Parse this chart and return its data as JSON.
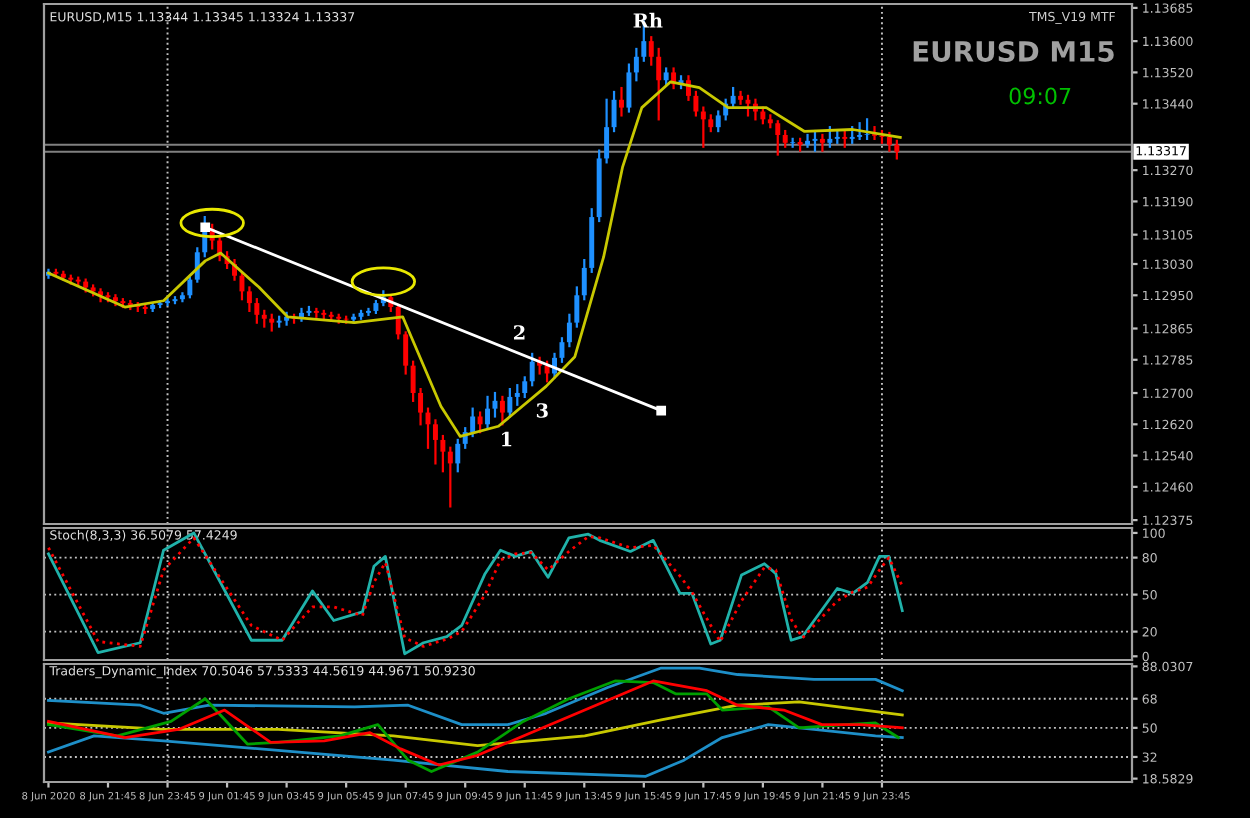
{
  "chart_data": [
    {
      "type": "candlestick",
      "title": "EURUSD,M15 1.13344 1.13345 1.13324 1.13337",
      "tick_labels": "y",
      "x": [
        "2020-06-08T19:45",
        "2020-06-08T20:00",
        "2020-06-08T20:15",
        "2020-06-08T20:30",
        "2020-06-08T20:45",
        "2020-06-08T21:00",
        "2020-06-08T21:15",
        "2020-06-08T21:30",
        "2020-06-08T21:45",
        "2020-06-08T22:00",
        "2020-06-08T22:15",
        "2020-06-08T22:30",
        "2020-06-08T22:45",
        "2020-06-08T23:00",
        "2020-06-08T23:15",
        "2020-06-08T23:30",
        "2020-06-08T23:45",
        "2020-06-09T00:00",
        "2020-06-09T00:15",
        "2020-06-09T00:30",
        "2020-06-09T00:45",
        "2020-06-09T01:00",
        "2020-06-09T01:15",
        "2020-06-09T01:30",
        "2020-06-09T01:45",
        "2020-06-09T02:00",
        "2020-06-09T02:15",
        "2020-06-09T02:30",
        "2020-06-09T02:45",
        "2020-06-09T03:00",
        "2020-06-09T03:15",
        "2020-06-09T03:30",
        "2020-06-09T03:45",
        "2020-06-09T04:00",
        "2020-06-09T04:15",
        "2020-06-09T04:30",
        "2020-06-09T04:45",
        "2020-06-09T05:00",
        "2020-06-09T05:15",
        "2020-06-09T05:30",
        "2020-06-09T05:45",
        "2020-06-09T06:00",
        "2020-06-09T06:15",
        "2020-06-09T06:30",
        "2020-06-09T06:45",
        "2020-06-09T07:00",
        "2020-06-09T07:15",
        "2020-06-09T07:30",
        "2020-06-09T07:45",
        "2020-06-09T08:00",
        "2020-06-09T08:15",
        "2020-06-09T08:30",
        "2020-06-09T08:45",
        "2020-06-09T09:00",
        "2020-06-09T09:15",
        "2020-06-09T09:30",
        "2020-06-09T09:45",
        "2020-06-09T10:00",
        "2020-06-09T10:15",
        "2020-06-09T10:30",
        "2020-06-09T10:45",
        "2020-06-09T11:00",
        "2020-06-09T11:15",
        "2020-06-09T11:30",
        "2020-06-09T11:45",
        "2020-06-09T12:00",
        "2020-06-09T12:15",
        "2020-06-09T12:30",
        "2020-06-09T12:45",
        "2020-06-09T13:00",
        "2020-06-09T13:15",
        "2020-06-09T13:30",
        "2020-06-09T13:45",
        "2020-06-09T14:00",
        "2020-06-09T14:15",
        "2020-06-09T14:30",
        "2020-06-09T14:45",
        "2020-06-09T15:00",
        "2020-06-09T15:15",
        "2020-06-09T15:30",
        "2020-06-09T15:45",
        "2020-06-09T16:00",
        "2020-06-09T16:15",
        "2020-06-09T16:30",
        "2020-06-09T16:45",
        "2020-06-09T17:00",
        "2020-06-09T17:15",
        "2020-06-09T17:30",
        "2020-06-09T17:45",
        "2020-06-09T18:00",
        "2020-06-09T18:15",
        "2020-06-09T18:30",
        "2020-06-09T18:45",
        "2020-06-09T19:00",
        "2020-06-09T19:15",
        "2020-06-09T19:30",
        "2020-06-09T19:45",
        "2020-06-09T20:00",
        "2020-06-09T20:15",
        "2020-06-09T20:30",
        "2020-06-09T20:45",
        "2020-06-09T21:00",
        "2020-06-09T21:15",
        "2020-06-09T21:30",
        "2020-06-09T21:45",
        "2020-06-09T22:00",
        "2020-06-09T22:15",
        "2020-06-09T22:30",
        "2020-06-09T22:45",
        "2020-06-09T23:00",
        "2020-06-09T23:15",
        "2020-06-09T23:30",
        "2020-06-09T23:45",
        "2020-06-10T00:00",
        "2020-06-10T00:15"
      ],
      "ohlc": [
        [
          1.13,
          1.13015,
          1.12995,
          1.1301
        ],
        [
          1.1301,
          1.13015,
          1.13,
          1.13005
        ],
        [
          1.13005,
          1.1301,
          1.1299,
          1.12995
        ],
        [
          1.12995,
          1.13,
          1.1298,
          1.1299
        ],
        [
          1.1299,
          1.12995,
          1.12975,
          1.12985
        ],
        [
          1.12985,
          1.1299,
          1.1296,
          1.1297
        ],
        [
          1.1297,
          1.12975,
          1.1295,
          1.1296
        ],
        [
          1.1296,
          1.12965,
          1.12935,
          1.1295
        ],
        [
          1.1295,
          1.12955,
          1.12935,
          1.12945
        ],
        [
          1.12945,
          1.1295,
          1.12925,
          1.12935
        ],
        [
          1.12935,
          1.1294,
          1.1292,
          1.1293
        ],
        [
          1.1293,
          1.12935,
          1.12915,
          1.12925
        ],
        [
          1.12925,
          1.1293,
          1.1291,
          1.1292
        ],
        [
          1.1292,
          1.12925,
          1.12905,
          1.12915
        ],
        [
          1.12915,
          1.1293,
          1.1291,
          1.12925
        ],
        [
          1.12925,
          1.12935,
          1.1292,
          1.1293
        ],
        [
          1.1293,
          1.1294,
          1.12925,
          1.12935
        ],
        [
          1.12935,
          1.12945,
          1.1293,
          1.1294
        ],
        [
          1.1294,
          1.12955,
          1.12935,
          1.1295
        ],
        [
          1.1295,
          1.12995,
          1.12945,
          1.1299
        ],
        [
          1.1299,
          1.1307,
          1.12985,
          1.1306
        ],
        [
          1.1306,
          1.1315,
          1.1305,
          1.1312
        ],
        [
          1.1312,
          1.1313,
          1.1307,
          1.1309
        ],
        [
          1.1309,
          1.13095,
          1.1304,
          1.1305
        ],
        [
          1.1305,
          1.1306,
          1.1302,
          1.1303
        ],
        [
          1.1303,
          1.1304,
          1.1299,
          1.13
        ],
        [
          1.13,
          1.13005,
          1.1294,
          1.1296
        ],
        [
          1.1296,
          1.1297,
          1.1291,
          1.1293
        ],
        [
          1.1293,
          1.1294,
          1.1288,
          1.129
        ],
        [
          1.129,
          1.1291,
          1.1287,
          1.1289
        ],
        [
          1.1289,
          1.129,
          1.1286,
          1.1288
        ],
        [
          1.1288,
          1.12895,
          1.1287,
          1.12885
        ],
        [
          1.12885,
          1.12905,
          1.12875,
          1.12895
        ],
        [
          1.12895,
          1.129,
          1.1288,
          1.1289
        ],
        [
          1.1289,
          1.12915,
          1.12885,
          1.12905
        ],
        [
          1.12905,
          1.1292,
          1.129,
          1.1291
        ],
        [
          1.1291,
          1.12915,
          1.12895,
          1.12905
        ],
        [
          1.12905,
          1.1291,
          1.1289,
          1.129
        ],
        [
          1.129,
          1.12905,
          1.12885,
          1.12895
        ],
        [
          1.12895,
          1.129,
          1.1288,
          1.1289
        ],
        [
          1.1289,
          1.12895,
          1.1288,
          1.12888
        ],
        [
          1.12888,
          1.129,
          1.1288,
          1.12895
        ],
        [
          1.12895,
          1.1291,
          1.1289,
          1.12905
        ],
        [
          1.12905,
          1.12915,
          1.129,
          1.1291
        ],
        [
          1.1291,
          1.12935,
          1.12905,
          1.1293
        ],
        [
          1.1293,
          1.1296,
          1.12925,
          1.12945
        ],
        [
          1.12945,
          1.1295,
          1.1291,
          1.1292
        ],
        [
          1.1292,
          1.12925,
          1.1284,
          1.1285
        ],
        [
          1.1285,
          1.12855,
          1.1275,
          1.1277
        ],
        [
          1.1277,
          1.1278,
          1.1268,
          1.127
        ],
        [
          1.127,
          1.1271,
          1.1262,
          1.1265
        ],
        [
          1.1265,
          1.1266,
          1.1256,
          1.1262
        ],
        [
          1.1262,
          1.1263,
          1.1252,
          1.1258
        ],
        [
          1.1258,
          1.1259,
          1.125,
          1.1255
        ],
        [
          1.1255,
          1.1256,
          1.1241,
          1.1252
        ],
        [
          1.1252,
          1.1258,
          1.125,
          1.1257
        ],
        [
          1.1257,
          1.1261,
          1.1256,
          1.126
        ],
        [
          1.126,
          1.1266,
          1.1259,
          1.1264
        ],
        [
          1.1264,
          1.1265,
          1.126,
          1.1262
        ],
        [
          1.1262,
          1.1269,
          1.1261,
          1.1266
        ],
        [
          1.1266,
          1.127,
          1.1264,
          1.1268
        ],
        [
          1.1268,
          1.1269,
          1.1262,
          1.1265
        ],
        [
          1.1265,
          1.1271,
          1.1264,
          1.1269
        ],
        [
          1.1269,
          1.1272,
          1.1267,
          1.127
        ],
        [
          1.127,
          1.1274,
          1.1269,
          1.1273
        ],
        [
          1.1273,
          1.128,
          1.1272,
          1.1278
        ],
        [
          1.1278,
          1.1279,
          1.1275,
          1.1277
        ],
        [
          1.1277,
          1.1278,
          1.1273,
          1.1275
        ],
        [
          1.1275,
          1.128,
          1.1274,
          1.1279
        ],
        [
          1.1279,
          1.1284,
          1.1278,
          1.1283
        ],
        [
          1.1283,
          1.129,
          1.1282,
          1.1288
        ],
        [
          1.1288,
          1.1297,
          1.1287,
          1.1295
        ],
        [
          1.1295,
          1.1304,
          1.1294,
          1.1302
        ],
        [
          1.1302,
          1.1317,
          1.1301,
          1.1315
        ],
        [
          1.1315,
          1.1332,
          1.1314,
          1.133
        ],
        [
          1.133,
          1.1345,
          1.1329,
          1.1338
        ],
        [
          1.1338,
          1.1347,
          1.1337,
          1.1345
        ],
        [
          1.1345,
          1.1348,
          1.1341,
          1.1343
        ],
        [
          1.1343,
          1.1354,
          1.1342,
          1.1352
        ],
        [
          1.1352,
          1.1358,
          1.135,
          1.1356
        ],
        [
          1.1356,
          1.1365,
          1.1355,
          1.136
        ],
        [
          1.136,
          1.1361,
          1.1354,
          1.1356
        ],
        [
          1.1356,
          1.1358,
          1.134,
          1.135
        ],
        [
          1.135,
          1.1353,
          1.1349,
          1.1352
        ],
        [
          1.1352,
          1.1353,
          1.1348,
          1.1349
        ],
        [
          1.1349,
          1.1351,
          1.1348,
          1.135
        ],
        [
          1.135,
          1.1351,
          1.1345,
          1.1346
        ],
        [
          1.1346,
          1.1347,
          1.1341,
          1.1342
        ],
        [
          1.1342,
          1.1343,
          1.1333,
          1.134
        ],
        [
          1.134,
          1.1341,
          1.1337,
          1.1338
        ],
        [
          1.1338,
          1.1342,
          1.1337,
          1.1341
        ],
        [
          1.1341,
          1.1345,
          1.134,
          1.1344
        ],
        [
          1.1344,
          1.1348,
          1.1343,
          1.1346
        ],
        [
          1.1346,
          1.1347,
          1.1344,
          1.1345
        ],
        [
          1.1345,
          1.1346,
          1.1341,
          1.1344
        ],
        [
          1.1344,
          1.1345,
          1.134,
          1.1342
        ],
        [
          1.1342,
          1.1343,
          1.1339,
          1.134
        ],
        [
          1.134,
          1.1341,
          1.1338,
          1.1339
        ],
        [
          1.1339,
          1.13395,
          1.1331,
          1.1336
        ],
        [
          1.1336,
          1.1337,
          1.1333,
          1.1334
        ],
        [
          1.1334,
          1.1335,
          1.1333,
          1.13342
        ],
        [
          1.13342,
          1.1335,
          1.1332,
          1.13335
        ],
        [
          1.13335,
          1.1336,
          1.1333,
          1.13345
        ],
        [
          1.13345,
          1.1337,
          1.1332,
          1.1335
        ],
        [
          1.1335,
          1.1336,
          1.1332,
          1.1334
        ],
        [
          1.1334,
          1.1338,
          1.1333,
          1.1335
        ],
        [
          1.1335,
          1.1337,
          1.1334,
          1.13355
        ],
        [
          1.13355,
          1.1337,
          1.1333,
          1.1335
        ],
        [
          1.1335,
          1.1338,
          1.1334,
          1.13355
        ],
        [
          1.13355,
          1.1339,
          1.1335,
          1.1336
        ],
        [
          1.1336,
          1.134,
          1.1335,
          1.13362
        ],
        [
          1.13362,
          1.1338,
          1.1335,
          1.13358
        ],
        [
          1.13358,
          1.1337,
          1.1334,
          1.13355
        ],
        [
          1.13355,
          1.13365,
          1.1332,
          1.13335
        ],
        [
          1.13335,
          1.13345,
          1.133,
          1.13317
        ]
      ],
      "colors": [
        "#1e90ff",
        "#ff0000",
        "#ff0000",
        "#ff0000",
        "#ff0000",
        "#ff0000",
        "#ff0000",
        "#ff0000",
        "#ff0000",
        "#ff0000",
        "#ff0000",
        "#ff0000",
        "#ff0000",
        "#ff0000",
        "#1e90ff",
        "#1e90ff",
        "#1e90ff",
        "#1e90ff",
        "#1e90ff",
        "#1e90ff",
        "#1e90ff",
        "#1e90ff",
        "#ff0000",
        "#ff0000",
        "#ff0000",
        "#ff0000",
        "#ff0000",
        "#ff0000",
        "#ff0000",
        "#ff0000",
        "#ff0000",
        "#1e90ff",
        "#1e90ff",
        "#ff0000",
        "#1e90ff",
        "#1e90ff",
        "#ff0000",
        "#ff0000",
        "#ff0000",
        "#ff0000",
        "#ff0000",
        "#1e90ff",
        "#1e90ff",
        "#1e90ff",
        "#1e90ff",
        "#1e90ff",
        "#ff0000",
        "#ff0000",
        "#ff0000",
        "#ff0000",
        "#ff0000",
        "#ff0000",
        "#ff0000",
        "#ff0000",
        "#ff0000",
        "#1e90ff",
        "#1e90ff",
        "#1e90ff",
        "#ff0000",
        "#1e90ff",
        "#1e90ff",
        "#ff0000",
        "#1e90ff",
        "#1e90ff",
        "#1e90ff",
        "#1e90ff",
        "#ff0000",
        "#ff0000",
        "#1e90ff",
        "#1e90ff",
        "#1e90ff",
        "#1e90ff",
        "#1e90ff",
        "#1e90ff",
        "#1e90ff",
        "#1e90ff",
        "#1e90ff",
        "#ff0000",
        "#1e90ff",
        "#1e90ff",
        "#1e90ff",
        "#ff0000",
        "#ff0000",
        "#1e90ff",
        "#ff0000",
        "#1e90ff",
        "#ff0000",
        "#ff0000",
        "#ff0000",
        "#ff0000",
        "#1e90ff",
        "#1e90ff",
        "#1e90ff",
        "#ff0000",
        "#ff0000",
        "#ff0000",
        "#ff0000",
        "#ff0000",
        "#ff0000",
        "#ff0000",
        "#1e90ff",
        "#ff0000",
        "#1e90ff",
        "#1e90ff",
        "#ff0000",
        "#1e90ff",
        "#1e90ff",
        "#ff0000",
        "#1e90ff",
        "#1e90ff",
        "#1e90ff",
        "#ff0000",
        "#ff0000",
        "#ff0000",
        "#ff0000"
      ],
      "series": [
        {
          "type": "line",
          "color": "#c8c800",
          "x": [
            "2020-06-08T19:45",
            "2020-06-08T22:19",
            "2020-06-08T23:37",
            "2020-06-09T01:01",
            "2020-06-09T01:32",
            "2020-06-09T02:49",
            "2020-06-09T03:47",
            "2020-06-09T06:02",
            "2020-06-09T07:39",
            "2020-06-09T08:56",
            "2020-06-09T09:35",
            "2020-06-09T10:52",
            "2020-06-09T12:28",
            "2020-06-09T13:26",
            "2020-06-09T14:24",
            "2020-06-09T15:02",
            "2020-06-09T15:41",
            "2020-06-09T16:39",
            "2020-06-09T17:37",
            "2020-06-09T18:35",
            "2020-06-09T19:52",
            "2020-06-09T21:09",
            "2020-06-09T22:46",
            "2020-06-10T00:22"
          ],
          "values": [
            1.13007,
            1.1292,
            1.12936,
            1.13038,
            1.13058,
            1.12971,
            1.12895,
            1.1288,
            1.12895,
            1.12666,
            1.12589,
            1.12615,
            1.12717,
            1.12793,
            1.13048,
            1.13277,
            1.1343,
            1.13496,
            1.13481,
            1.1343,
            1.1343,
            1.13369,
            1.13374,
            1.13354
          ]
        },
        {
          "type": "line",
          "color": "#ffffff",
          "marker": "square",
          "x": [
            "2020-06-09T01:01",
            "2020-06-09T16:20"
          ],
          "values": [
            1.13124,
            1.12655
          ]
        }
      ],
      "xlim": [
        "2020-06-08T19:36",
        "2020-06-10T08:09"
      ],
      "ylim": [
        1.12365,
        1.13695
      ],
      "yticks": [
        {
          "value": 1.12375,
          "label": "1.12375"
        },
        {
          "value": 1.1246,
          "label": "1.12460"
        },
        {
          "value": 1.1254,
          "label": "1.12540"
        },
        {
          "value": 1.1262,
          "label": "1.12620"
        },
        {
          "value": 1.127,
          "label": "1.12700"
        },
        {
          "value": 1.12785,
          "label": "1.12785"
        },
        {
          "value": 1.12865,
          "label": "1.12865"
        },
        {
          "value": 1.1295,
          "label": "1.12950"
        },
        {
          "value": 1.1303,
          "label": "1.13030"
        },
        {
          "value": 1.13105,
          "label": "1.13105"
        },
        {
          "value": 1.1319,
          "label": "1.13190"
        },
        {
          "value": 1.1327,
          "label": "1.13270"
        },
        {
          "value": 1.1344,
          "label": "1.13440"
        },
        {
          "value": 1.1352,
          "label": "1.13520"
        },
        {
          "value": 1.136,
          "label": "1.13600"
        },
        {
          "value": 1.13685,
          "label": "1.13685"
        }
      ],
      "ref_lines": [
        {
          "axis": "x",
          "value": "2020-06-08T23:45",
          "color": "#c0c0c0",
          "line_style": "dotted"
        },
        {
          "axis": "x",
          "value": "2020-06-09T23:45",
          "color": "#c0c0c0",
          "line_style": "dotted"
        },
        {
          "axis": "y",
          "value": 1.13335,
          "color": "#808080",
          "line_style": "solid"
        },
        {
          "axis": "y",
          "value": 1.13317,
          "label": "1.13317",
          "color": "#808080",
          "line_style": "solid"
        }
      ],
      "annotations": [
        "Rh",
        "1",
        "2",
        "3",
        "TMS_V19 MTF",
        "EURUSD M15",
        "09:07"
      ]
    },
    {
      "type": "line",
      "title": "Stoch(8,3,3) 36.5079 57.4249",
      "tick_labels": "y",
      "xlim": [
        "2020-06-08T19:36",
        "2020-06-10T08:09"
      ],
      "ylim": [
        -3,
        104
      ],
      "yticks": [
        0,
        20,
        50,
        80,
        100
      ],
      "series": [
        {
          "color": "#20b2aa",
          "line_style": "solid",
          "x": [
            "2020-06-08T19:45",
            "2020-06-08T21:25",
            "2020-06-08T22:50",
            "2020-06-08T23:37",
            "2020-06-09T00:38",
            "2020-06-09T02:34",
            "2020-06-09T03:36",
            "2020-06-09T04:37",
            "2020-06-09T05:20",
            "2020-06-09T06:18",
            "2020-06-09T06:41",
            "2020-06-09T07:04",
            "2020-06-09T07:43",
            "2020-06-09T08:21",
            "2020-06-09T09:08",
            "2020-06-09T09:38",
            "2020-06-09T10:25",
            "2020-06-09T10:56",
            "2020-06-09T11:26",
            "2020-06-09T11:58",
            "2020-06-09T12:32",
            "2020-06-09T13:14",
            "2020-06-09T13:53",
            "2020-06-09T14:16",
            "2020-06-09T15:18",
            "2020-06-09T16:04",
            "2020-06-09T16:58",
            "2020-06-09T17:22",
            "2020-06-09T18:00",
            "2020-06-09T18:19",
            "2020-06-09T19:02",
            "2020-06-09T19:48",
            "2020-06-09T20:11",
            "2020-06-09T20:42",
            "2020-06-09T21:05",
            "2020-06-09T22:15",
            "2020-06-09T22:46",
            "2020-06-09T23:16",
            "2020-06-09T23:40",
            "2020-06-09T23:59",
            "2020-06-10T00:26"
          ],
          "values": [
            83,
            3,
            11,
            86,
            100,
            13,
            13,
            53,
            29,
            36,
            73,
            81,
            2,
            11,
            16,
            25,
            67,
            86,
            81,
            85,
            64,
            96,
            99,
            94,
            85,
            94,
            51,
            51,
            10,
            13,
            66,
            75,
            67,
            13,
            16,
            55,
            51,
            60,
            81,
            81,
            37
          ]
        },
        {
          "color": "#ff0000",
          "line_style": "dotted",
          "x": [
            "2020-06-08T19:45",
            "2020-06-08T21:25",
            "2020-06-08T22:50",
            "2020-06-08T23:37",
            "2020-06-09T00:38",
            "2020-06-09T02:34",
            "2020-06-09T03:36",
            "2020-06-09T04:37",
            "2020-06-09T05:20",
            "2020-06-09T06:18",
            "2020-06-09T06:41",
            "2020-06-09T07:04",
            "2020-06-09T07:43",
            "2020-06-09T08:21",
            "2020-06-09T09:08",
            "2020-06-09T09:38",
            "2020-06-09T10:25",
            "2020-06-09T10:56",
            "2020-06-09T11:26",
            "2020-06-09T11:58",
            "2020-06-09T12:32",
            "2020-06-09T13:14",
            "2020-06-09T13:53",
            "2020-06-09T14:16",
            "2020-06-09T15:18",
            "2020-06-09T16:04",
            "2020-06-09T16:58",
            "2020-06-09T17:22",
            "2020-06-09T18:00",
            "2020-06-09T18:19",
            "2020-06-09T19:02",
            "2020-06-09T19:48",
            "2020-06-09T20:11",
            "2020-06-09T20:42",
            "2020-06-09T21:05",
            "2020-06-09T22:15",
            "2020-06-09T22:46",
            "2020-06-09T23:16",
            "2020-06-09T23:40",
            "2020-06-09T23:59",
            "2020-06-10T00:26"
          ],
          "values": [
            88,
            12,
            8,
            70,
            96,
            25,
            13,
            40,
            40,
            33,
            60,
            76,
            15,
            8,
            14,
            20,
            50,
            78,
            83,
            84,
            70,
            85,
            97,
            96,
            88,
            90,
            65,
            52,
            25,
            12,
            45,
            72,
            70,
            30,
            15,
            45,
            52,
            56,
            70,
            80,
            57
          ]
        }
      ],
      "ref_lines": [
        {
          "axis": "y",
          "value": 20,
          "color": "#c0c0c0",
          "line_style": "dotted"
        },
        {
          "axis": "y",
          "value": 50,
          "color": "#c0c0c0",
          "line_style": "dotted"
        },
        {
          "axis": "y",
          "value": 80,
          "color": "#c0c0c0",
          "line_style": "dotted"
        },
        {
          "axis": "x",
          "value": "2020-06-08T23:45",
          "color": "#c0c0c0",
          "line_style": "dotted"
        },
        {
          "axis": "x",
          "value": "2020-06-09T23:45",
          "color": "#c0c0c0",
          "line_style": "dotted"
        }
      ]
    },
    {
      "type": "line",
      "title": "Traders_Dynamic_Index 70.5046 57.5333 44.5619 44.9671 50.9230",
      "xlim": [
        "2020-06-08T19:36",
        "2020-06-10T08:09"
      ],
      "ylim": [
        16.5,
        89.5
      ],
      "yticks": [
        {
          "value": 18.5829,
          "label": "18.5829"
        },
        32,
        50,
        68,
        {
          "value": 88.0307,
          "label": "88.0307"
        }
      ],
      "xticks": [
        {
          "value": "2020-06-08T19:45",
          "label": "8 Jun 2020"
        },
        {
          "value": "2020-06-08T21:45",
          "label": "8 Jun 21:45"
        },
        {
          "value": "2020-06-08T23:45",
          "label": "8 Jun 23:45"
        },
        {
          "value": "2020-06-09T01:45",
          "label": "9 Jun 01:45"
        },
        {
          "value": "2020-06-09T03:45",
          "label": "9 Jun 03:45"
        },
        {
          "value": "2020-06-09T05:45",
          "label": "9 Jun 05:45"
        },
        {
          "value": "2020-06-09T07:45",
          "label": "9 Jun 07:45"
        },
        {
          "value": "2020-06-09T09:45",
          "label": "9 Jun 09:45"
        },
        {
          "value": "2020-06-09T11:45",
          "label": "9 Jun 11:45"
        },
        {
          "value": "2020-06-09T13:45",
          "label": "9 Jun 13:45"
        },
        {
          "value": "2020-06-09T15:45",
          "label": "9 Jun 15:45"
        },
        {
          "value": "2020-06-09T17:45",
          "label": "9 Jun 17:45"
        },
        {
          "value": "2020-06-09T19:45",
          "label": "9 Jun 19:45"
        },
        {
          "value": "2020-06-09T21:45",
          "label": "9 Jun 21:45"
        },
        {
          "value": "2020-06-09T23:45",
          "label": "9 Jun 23:45"
        }
      ],
      "series": [
        {
          "color": "#1e8fc8",
          "x": [
            "2020-06-08T19:45",
            "2020-06-08T22:50",
            "2020-06-08T23:37",
            "2020-06-09T01:09",
            "2020-06-09T06:02",
            "2020-06-09T07:50",
            "2020-06-09T09:38",
            "2020-06-09T11:11",
            "2020-06-09T12:28",
            "2020-06-09T14:32",
            "2020-06-09T16:20",
            "2020-06-09T17:37",
            "2020-06-09T18:54",
            "2020-06-09T21:28",
            "2020-06-09T23:32",
            "2020-06-10T00:26"
          ],
          "values": [
            67,
            64,
            59,
            64,
            63,
            64,
            52,
            52,
            59,
            75,
            87,
            87,
            83,
            80,
            80,
            73
          ]
        },
        {
          "color": "#1e8fc8",
          "x": [
            "2020-06-08T19:45",
            "2020-06-08T21:17",
            "2020-06-08T23:37",
            "2020-06-09T03:28",
            "2020-06-09T07:20",
            "2020-06-09T11:11",
            "2020-06-09T15:49",
            "2020-06-09T17:06",
            "2020-06-09T18:23",
            "2020-06-09T19:56",
            "2020-06-09T21:28",
            "2020-06-09T23:32",
            "2020-06-10T00:26"
          ],
          "values": [
            35,
            45,
            42,
            36,
            30,
            23,
            20,
            30,
            44,
            52,
            49,
            45,
            44
          ]
        },
        {
          "color": "#c8c800",
          "x": [
            "2020-06-08T19:45",
            "2020-06-08T23:37",
            "2020-06-09T03:28",
            "2020-06-09T07:20",
            "2020-06-09T10:10",
            "2020-06-09T13:46",
            "2020-06-09T16:20",
            "2020-06-09T18:54",
            "2020-06-09T20:58",
            "2020-06-10T00:26"
          ],
          "values": [
            53,
            49,
            49,
            45,
            39,
            45,
            55,
            64,
            66,
            58
          ]
        },
        {
          "color": "#00a000",
          "x": [
            "2020-06-08T19:45",
            "2020-06-08T22:04",
            "2020-06-08T23:52",
            "2020-06-09T01:01",
            "2020-06-09T02:26",
            "2020-06-09T03:28",
            "2020-06-09T05:32",
            "2020-06-09T06:49",
            "2020-06-09T07:50",
            "2020-06-09T08:37",
            "2020-06-09T10:10",
            "2020-06-09T11:42",
            "2020-06-09T13:14",
            "2020-06-09T14:47",
            "2020-06-09T16:04",
            "2020-06-09T16:50",
            "2020-06-09T17:52",
            "2020-06-09T18:23",
            "2020-06-09T19:56",
            "2020-06-09T20:58",
            "2020-06-09T22:30",
            "2020-06-09T23:32",
            "2020-06-10T00:18"
          ],
          "values": [
            52,
            45,
            54,
            68,
            40,
            41,
            45,
            52,
            30,
            23,
            35,
            54,
            68,
            79,
            78,
            71,
            71,
            61,
            63,
            50,
            52,
            53,
            44
          ]
        },
        {
          "color": "#ff0000",
          "x": [
            "2020-06-08T19:45",
            "2020-06-08T22:19",
            "2020-06-09T00:07",
            "2020-06-09T01:40",
            "2020-06-09T03:13",
            "2020-06-09T05:01",
            "2020-06-09T06:33",
            "2020-06-09T07:35",
            "2020-06-09T08:52",
            "2020-06-09T10:10",
            "2020-06-09T12:13",
            "2020-06-09T13:46",
            "2020-06-09T16:04",
            "2020-06-09T17:52",
            "2020-06-09T18:54",
            "2020-06-09T20:27",
            "2020-06-09T21:44",
            "2020-06-09T23:01",
            "2020-06-10T00:26"
          ],
          "values": [
            54,
            44,
            49,
            61,
            41,
            42,
            47,
            37,
            27,
            33,
            49,
            61,
            79,
            73,
            64,
            61,
            52,
            52,
            50
          ]
        }
      ],
      "ref_lines": [
        {
          "axis": "y",
          "value": 32,
          "color": "#c0c0c0",
          "line_style": "dotted"
        },
        {
          "axis": "y",
          "value": 50,
          "color": "#c0c0c0",
          "line_style": "dotted"
        },
        {
          "axis": "y",
          "value": 68,
          "color": "#c0c0c0",
          "line_style": "dotted"
        },
        {
          "axis": "x",
          "value": "2020-06-08T23:45",
          "color": "#c0c0c0",
          "line_style": "dotted"
        },
        {
          "axis": "x",
          "value": "2020-06-09T23:45",
          "color": "#c0c0c0",
          "line_style": "dotted"
        }
      ]
    }
  ]
}
